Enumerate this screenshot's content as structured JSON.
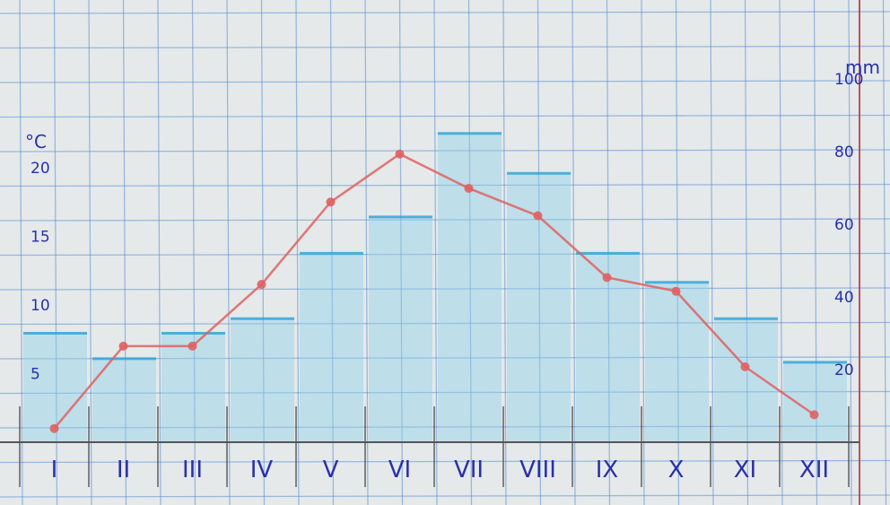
{
  "chart_data": {
    "type": "bar",
    "categories": [
      "I",
      "II",
      "III",
      "IV",
      "V",
      "VI",
      "VII",
      "VIII",
      "IX",
      "X",
      "XI",
      "XII"
    ],
    "series": [
      {
        "kind": "bar",
        "axis": "right",
        "values": [
          30,
          23,
          30,
          34,
          52,
          62,
          85,
          74,
          52,
          44,
          34,
          22
        ]
      },
      {
        "kind": "line",
        "axis": "left",
        "values": [
          1,
          7,
          7,
          11.5,
          17.5,
          21,
          18.5,
          16.5,
          12,
          11,
          5.5,
          2
        ]
      }
    ],
    "left_axis": {
      "unit": "°C",
      "ticks": [
        "5",
        "10",
        "15",
        "20"
      ],
      "tick_values": [
        5,
        10,
        15,
        20
      ],
      "range": [
        0,
        22
      ]
    },
    "right_axis": {
      "unit": "mm",
      "ticks": [
        "20",
        "40",
        "60",
        "80",
        "100"
      ],
      "tick_values": [
        20,
        40,
        60,
        80,
        100
      ],
      "range": [
        0,
        110
      ]
    },
    "grid": true,
    "colors": {
      "bars": "#8fd0e8",
      "bar_caps": "#2aa4d8",
      "line": "#e06060",
      "axis_labels": "#2a30a8",
      "grid": "#5a8fd0",
      "margin_line": "#b03040"
    }
  }
}
